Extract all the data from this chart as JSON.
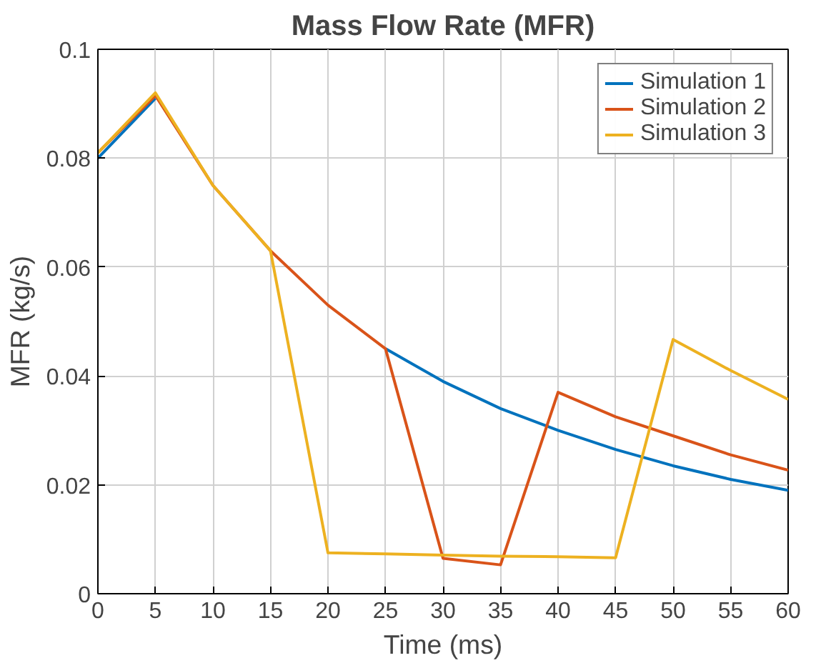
{
  "chart_data": {
    "type": "line",
    "title": "Mass Flow Rate (MFR)",
    "xlabel": "Time (ms)",
    "ylabel": "MFR (kg/s)",
    "x": [
      0,
      5,
      10,
      15,
      20,
      25,
      30,
      35,
      40,
      45,
      50,
      55,
      60
    ],
    "series": [
      {
        "name": "Simulation 1",
        "color": "#0072bd",
        "values": [
          0.08,
          0.091,
          null,
          null,
          null,
          0.045,
          0.039,
          0.034,
          0.03,
          0.0265,
          0.0235,
          0.021,
          0.019
        ]
      },
      {
        "name": "Simulation 2",
        "color": "#d95319",
        "values": [
          0.081,
          0.0915,
          0.075,
          0.063,
          0.053,
          0.045,
          0.0065,
          0.0053,
          0.037,
          0.0325,
          0.029,
          0.0255,
          0.0227
        ]
      },
      {
        "name": "Simulation 3",
        "color": "#edb120",
        "values": [
          0.081,
          0.092,
          0.075,
          0.063,
          0.0075,
          0.0073,
          0.0071,
          0.0069,
          0.0068,
          0.0066,
          0.0467,
          0.041,
          0.0357
        ]
      }
    ],
    "xlim": [
      0,
      60
    ],
    "ylim": [
      0,
      0.1
    ],
    "xticks": [
      0,
      5,
      10,
      15,
      20,
      25,
      30,
      35,
      40,
      45,
      50,
      55,
      60
    ],
    "yticks": [
      0,
      {
        "value": 0.02,
        "label": "0.02"
      },
      {
        "value": 0.04,
        "label": "0.04"
      },
      {
        "value": 0.06,
        "label": "0.06"
      },
      {
        "value": 0.08,
        "label": "0.08"
      },
      {
        "value": 0.1,
        "label": "0.1"
      }
    ],
    "grid": true,
    "legend": "top right",
    "marker": "none",
    "line_style": "solid"
  }
}
